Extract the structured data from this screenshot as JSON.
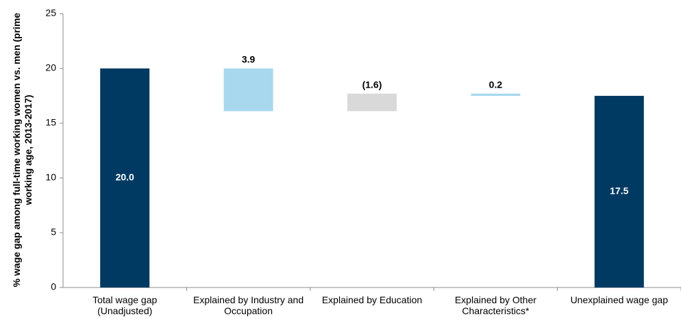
{
  "chart_data": {
    "type": "waterfall",
    "ylabel": "% wage gap among full-time working women vs. men (prime working age, 2013-2017)",
    "categories": [
      "Total wage gap (Unadjusted)",
      "Explained by Industry and Occupation",
      "Explained by Education",
      "Explained by Other Characteristics*",
      "Unexplained wage gap"
    ],
    "values": [
      20,
      3.9,
      -1.6,
      0.2,
      17.5
    ],
    "value_labels": [
      "20.0",
      "3.9",
      "(1.6)",
      "0.2",
      "17.5"
    ],
    "colors": [
      "#003a63",
      "#a8d8ee",
      "#d9d9d9",
      "#a8d8ee",
      "#003a63"
    ],
    "ylim": [
      0,
      25
    ],
    "yticks": [
      0,
      5,
      10,
      15,
      20,
      25
    ],
    "grid": false
  }
}
